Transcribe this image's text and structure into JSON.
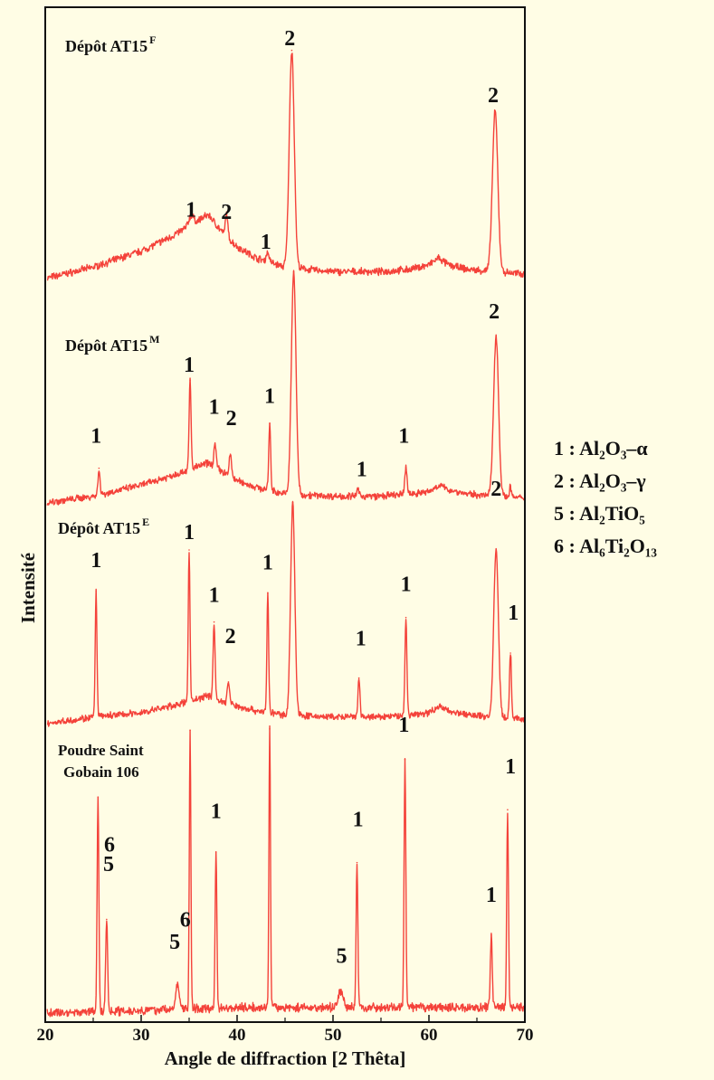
{
  "chart_data": {
    "type": "line",
    "xlabel": "Angle de diffraction [2 Thêta]",
    "ylabel": "Intensité",
    "xlim": [
      20,
      70
    ],
    "xticks": [
      "20",
      "30",
      "40",
      "50",
      "60",
      "70"
    ],
    "colors": {
      "line": "#f4423a",
      "background": "#fffde5",
      "axis": "#111111"
    },
    "grid": false,
    "series": [
      {
        "title_main": "Dépôt AT15",
        "title_sup": "F",
        "background": [
          [
            20,
            0.0
          ],
          [
            25,
            0.05
          ],
          [
            30,
            0.12
          ],
          [
            33,
            0.18
          ],
          [
            35,
            0.23
          ],
          [
            37,
            0.28
          ],
          [
            38.5,
            0.2
          ],
          [
            40,
            0.14
          ],
          [
            42,
            0.09
          ],
          [
            45,
            0.05
          ],
          [
            50,
            0.03
          ],
          [
            55,
            0.03
          ],
          [
            58,
            0.04
          ],
          [
            60,
            0.06
          ],
          [
            61,
            0.09
          ],
          [
            62,
            0.06
          ],
          [
            64,
            0.04
          ],
          [
            67,
            0.03
          ],
          [
            70,
            0.02
          ]
        ],
        "peaks": [
          {
            "x": 35.2,
            "h": 0.04,
            "w": 0.25
          },
          {
            "x": 38.9,
            "h": 0.1,
            "w": 0.12
          },
          {
            "x": 43.2,
            "h": 0.04,
            "w": 0.15
          },
          {
            "x": 45.7,
            "h": 0.95,
            "w": 0.26
          },
          {
            "x": 66.9,
            "h": 0.7,
            "w": 0.28
          }
        ],
        "labels": [
          {
            "text": "1",
            "x": 35.2,
            "y": 0.27
          },
          {
            "text": "2",
            "x": 38.9,
            "y": 0.26
          },
          {
            "text": "1",
            "x": 43.0,
            "y": 0.13
          },
          {
            "text": "2",
            "x": 45.5,
            "y": 1.02
          },
          {
            "text": "2",
            "x": 66.7,
            "y": 0.77
          }
        ]
      },
      {
        "title_main": "Dépôt AT15",
        "title_sup": "M",
        "background": [
          [
            20,
            0.0
          ],
          [
            25,
            0.03
          ],
          [
            30,
            0.08
          ],
          [
            33,
            0.12
          ],
          [
            35,
            0.15
          ],
          [
            37,
            0.18
          ],
          [
            38.5,
            0.14
          ],
          [
            40,
            0.1
          ],
          [
            42,
            0.07
          ],
          [
            45,
            0.04
          ],
          [
            50,
            0.03
          ],
          [
            55,
            0.03
          ],
          [
            58,
            0.04
          ],
          [
            60,
            0.05
          ],
          [
            61,
            0.08
          ],
          [
            62,
            0.06
          ],
          [
            64,
            0.04
          ],
          [
            67,
            0.03
          ],
          [
            70,
            0.02
          ]
        ],
        "peaks": [
          {
            "x": 25.6,
            "h": 0.12,
            "w": 0.1
          },
          {
            "x": 35.1,
            "h": 0.4,
            "w": 0.1
          },
          {
            "x": 37.7,
            "h": 0.1,
            "w": 0.12
          },
          {
            "x": 39.3,
            "h": 0.1,
            "w": 0.12
          },
          {
            "x": 43.4,
            "h": 0.3,
            "w": 0.1
          },
          {
            "x": 45.9,
            "h": 1.0,
            "w": 0.24
          },
          {
            "x": 52.6,
            "h": 0.03,
            "w": 0.12
          },
          {
            "x": 57.6,
            "h": 0.12,
            "w": 0.12
          },
          {
            "x": 67.0,
            "h": 0.72,
            "w": 0.26
          },
          {
            "x": 68.5,
            "h": 0.05,
            "w": 0.1
          }
        ],
        "labels": [
          {
            "text": "1",
            "x": 25.3,
            "y": 0.27
          },
          {
            "text": "1",
            "x": 35.0,
            "y": 0.59
          },
          {
            "text": "1",
            "x": 37.6,
            "y": 0.4
          },
          {
            "text": "2",
            "x": 39.4,
            "y": 0.35
          },
          {
            "text": "1",
            "x": 43.4,
            "y": 0.45
          },
          {
            "text": "1",
            "x": 53.0,
            "y": 0.12
          },
          {
            "text": "1",
            "x": 57.4,
            "y": 0.27
          },
          {
            "text": "2",
            "x": 66.8,
            "y": 0.83
          }
        ]
      },
      {
        "title_main": "Dépôt AT15",
        "title_sup": "E",
        "background": [
          [
            20,
            0.0
          ],
          [
            25,
            0.03
          ],
          [
            30,
            0.05
          ],
          [
            33,
            0.08
          ],
          [
            35,
            0.1
          ],
          [
            37,
            0.13
          ],
          [
            38.5,
            0.1
          ],
          [
            40,
            0.08
          ],
          [
            42,
            0.06
          ],
          [
            45,
            0.04
          ],
          [
            50,
            0.03
          ],
          [
            55,
            0.03
          ],
          [
            58,
            0.04
          ],
          [
            60,
            0.05
          ],
          [
            61,
            0.08
          ],
          [
            62,
            0.06
          ],
          [
            64,
            0.04
          ],
          [
            67,
            0.03
          ],
          [
            70,
            0.02
          ]
        ],
        "peaks": [
          {
            "x": 25.3,
            "h": 0.58,
            "w": 0.09
          },
          {
            "x": 35.0,
            "h": 0.7,
            "w": 0.09
          },
          {
            "x": 37.6,
            "h": 0.35,
            "w": 0.1
          },
          {
            "x": 39.1,
            "h": 0.1,
            "w": 0.12
          },
          {
            "x": 43.2,
            "h": 0.55,
            "w": 0.09
          },
          {
            "x": 45.8,
            "h": 0.98,
            "w": 0.22
          },
          {
            "x": 52.7,
            "h": 0.18,
            "w": 0.1
          },
          {
            "x": 57.6,
            "h": 0.45,
            "w": 0.1
          },
          {
            "x": 67.0,
            "h": 0.77,
            "w": 0.24
          },
          {
            "x": 68.5,
            "h": 0.3,
            "w": 0.1
          }
        ],
        "labels": [
          {
            "text": "1",
            "x": 25.3,
            "y": 0.72
          },
          {
            "text": "1",
            "x": 35.0,
            "y": 0.85
          },
          {
            "text": "1",
            "x": 37.6,
            "y": 0.56
          },
          {
            "text": "2",
            "x": 39.3,
            "y": 0.37
          },
          {
            "text": "1",
            "x": 43.2,
            "y": 0.71
          },
          {
            "text": "1",
            "x": 52.9,
            "y": 0.36
          },
          {
            "text": "1",
            "x": 57.6,
            "y": 0.61
          },
          {
            "text": "2",
            "x": 67.0,
            "y": 1.05
          },
          {
            "text": "1",
            "x": 68.8,
            "y": 0.48
          }
        ]
      },
      {
        "title_main": "Poudre Saint",
        "title_line2": "Gobain 106",
        "background": [
          [
            20,
            0.0
          ],
          [
            30,
            0.01
          ],
          [
            40,
            0.02
          ],
          [
            50,
            0.02
          ],
          [
            60,
            0.02
          ],
          [
            70,
            0.02
          ]
        ],
        "peaks": [
          {
            "x": 25.5,
            "h": 0.77,
            "w": 0.09
          },
          {
            "x": 26.4,
            "h": 0.33,
            "w": 0.1
          },
          {
            "x": 33.8,
            "h": 0.09,
            "w": 0.18
          },
          {
            "x": 35.1,
            "h": 1.0,
            "w": 0.08
          },
          {
            "x": 37.8,
            "h": 0.56,
            "w": 0.09
          },
          {
            "x": 43.4,
            "h": 1.0,
            "w": 0.08
          },
          {
            "x": 50.8,
            "h": 0.06,
            "w": 0.25
          },
          {
            "x": 52.5,
            "h": 0.52,
            "w": 0.09
          },
          {
            "x": 57.5,
            "h": 0.89,
            "w": 0.09
          },
          {
            "x": 66.5,
            "h": 0.26,
            "w": 0.1
          },
          {
            "x": 68.2,
            "h": 0.71,
            "w": 0.09
          }
        ],
        "labels": [
          {
            "text": "6",
            "x": 26.7,
            "y": 0.58
          },
          {
            "text": "5",
            "x": 26.6,
            "y": 0.51
          },
          {
            "text": "6",
            "x": 34.6,
            "y": 0.31
          },
          {
            "text": "5",
            "x": 33.5,
            "y": 0.23
          },
          {
            "text": "1",
            "x": 37.8,
            "y": 0.7
          },
          {
            "text": "5",
            "x": 50.9,
            "y": 0.18
          },
          {
            "text": "1",
            "x": 52.6,
            "y": 0.67
          },
          {
            "text": "1",
            "x": 57.4,
            "y": 1.01
          },
          {
            "text": "1",
            "x": 66.5,
            "y": 0.4
          },
          {
            "text": "1",
            "x": 68.5,
            "y": 0.86
          }
        ]
      }
    ],
    "legend": [
      {
        "key": "1 : ",
        "formula": "Al₂O₃–α"
      },
      {
        "key": "2 : ",
        "formula": "Al₂O₃–γ"
      },
      {
        "key": "5 : ",
        "formula": "Al₂TiO₅"
      },
      {
        "key": "6 : ",
        "formula": "Al₆Ti₂O₁₃"
      }
    ]
  }
}
